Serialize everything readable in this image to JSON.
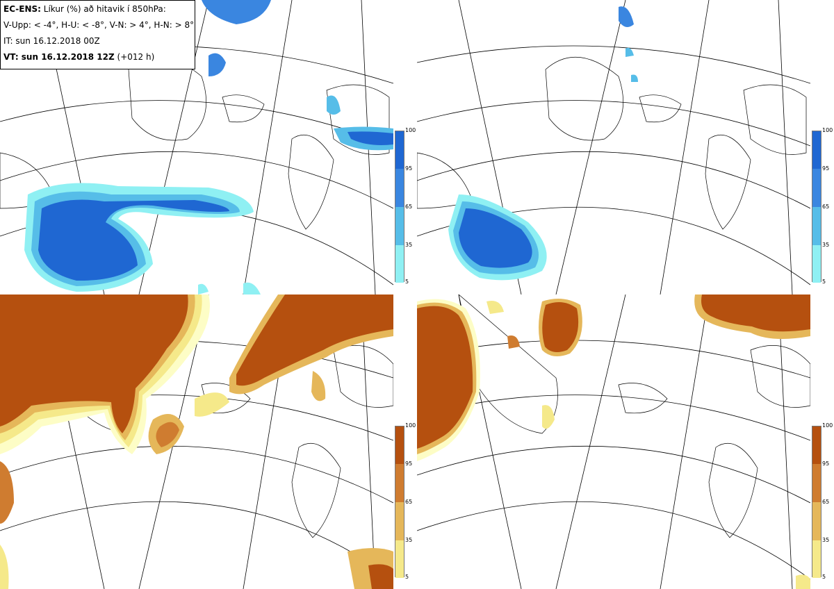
{
  "info": {
    "model": "EC-ENS:",
    "title_rest": "Líkur (%) að hitavik í 850hPa:",
    "thresholds": "V-Upp: < -4°, H-U: < -8°, V-N: > 4°, H-N: > 8°",
    "it": "IT: sun 16.12.2018 00Z",
    "vt_label": "VT: sun 16.12.2018 12Z",
    "vt_lead": "(+012 h)"
  },
  "panels": [
    {
      "id": "upper-left",
      "label": "V-Upp",
      "scale": "cold"
    },
    {
      "id": "upper-right",
      "label": "H-U",
      "scale": "cold"
    },
    {
      "id": "lower-left",
      "label": "V-N",
      "scale": "warm"
    },
    {
      "id": "lower-right",
      "label": "H-N",
      "scale": "warm"
    }
  ],
  "legend_cold": {
    "ticks": [
      "100",
      "95",
      "65",
      "35",
      "5"
    ],
    "colors": [
      "#1f67d2",
      "#3a86e0",
      "#56bde8",
      "#8ff0f3",
      "#d6fdfd"
    ]
  },
  "legend_warm": {
    "ticks": [
      "100",
      "95",
      "65",
      "35",
      "5"
    ],
    "colors": [
      "#b5500f",
      "#cf7c30",
      "#e5b75a",
      "#f5e98a",
      "#fdfdc6"
    ]
  }
}
